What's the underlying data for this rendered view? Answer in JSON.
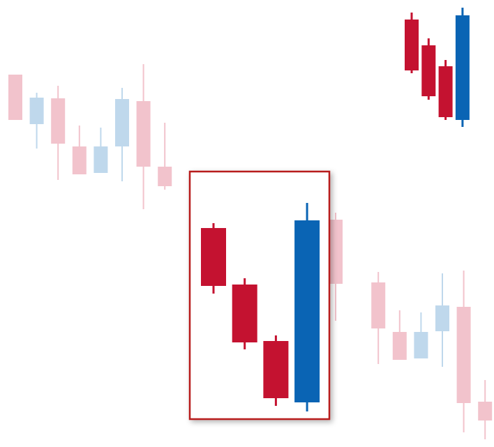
{
  "chart_data": [
    {
      "type": "candlestick",
      "up_color": "#bfd8ec",
      "down_color": "#f2c3cc",
      "ylim": [
        0,
        641
      ],
      "categories": [
        null,
        null,
        null,
        null,
        null,
        null,
        null,
        null,
        null,
        null,
        null,
        null,
        null,
        null,
        null,
        null,
        null,
        null,
        null,
        null,
        null,
        null,
        null
      ],
      "open": [
        534,
        463,
        500,
        431,
        393,
        431,
        496,
        402,
        null,
        null,
        null,
        null,
        null,
        null,
        null,
        326,
        null,
        236,
        165,
        127,
        166,
        201,
        65
      ],
      "high": [
        534,
        508,
        518,
        461,
        458,
        515,
        549,
        465,
        null,
        null,
        null,
        null,
        null,
        null,
        null,
        336,
        null,
        251,
        196,
        193,
        249,
        253,
        96
      ],
      "low": [
        469,
        428,
        383,
        391,
        393,
        381,
        341,
        369,
        null,
        null,
        null,
        null,
        null,
        null,
        null,
        181,
        null,
        119,
        125,
        127,
        115,
        21,
        11
      ],
      "close": [
        469,
        501,
        435,
        391,
        431,
        499,
        402,
        374,
        null,
        null,
        null,
        null,
        null,
        null,
        null,
        234,
        null,
        170,
        125,
        165,
        203,
        63,
        38
      ]
    },
    {
      "type": "candlestick",
      "up_color": "#0a64b4",
      "down_color": "#c41230",
      "ylim": [
        0,
        641
      ],
      "categories": [
        null,
        null,
        null,
        null
      ],
      "open": [
        613,
        576,
        546,
        469
      ],
      "high": [
        623,
        586,
        555,
        630
      ],
      "low": [
        536,
        498,
        469,
        459
      ],
      "close": [
        540,
        503,
        473,
        619
      ]
    },
    {
      "type": "candlestick",
      "up_color": "#0a64b4",
      "down_color": "#c41230",
      "ylim": [
        0,
        641
      ],
      "categories": [
        null,
        null,
        null,
        null
      ],
      "open": [
        314,
        233,
        152,
        64
      ],
      "high": [
        321,
        242,
        160,
        350
      ],
      "low": [
        220,
        140,
        59,
        51
      ],
      "close": [
        231,
        150,
        70,
        325
      ]
    }
  ]
}
